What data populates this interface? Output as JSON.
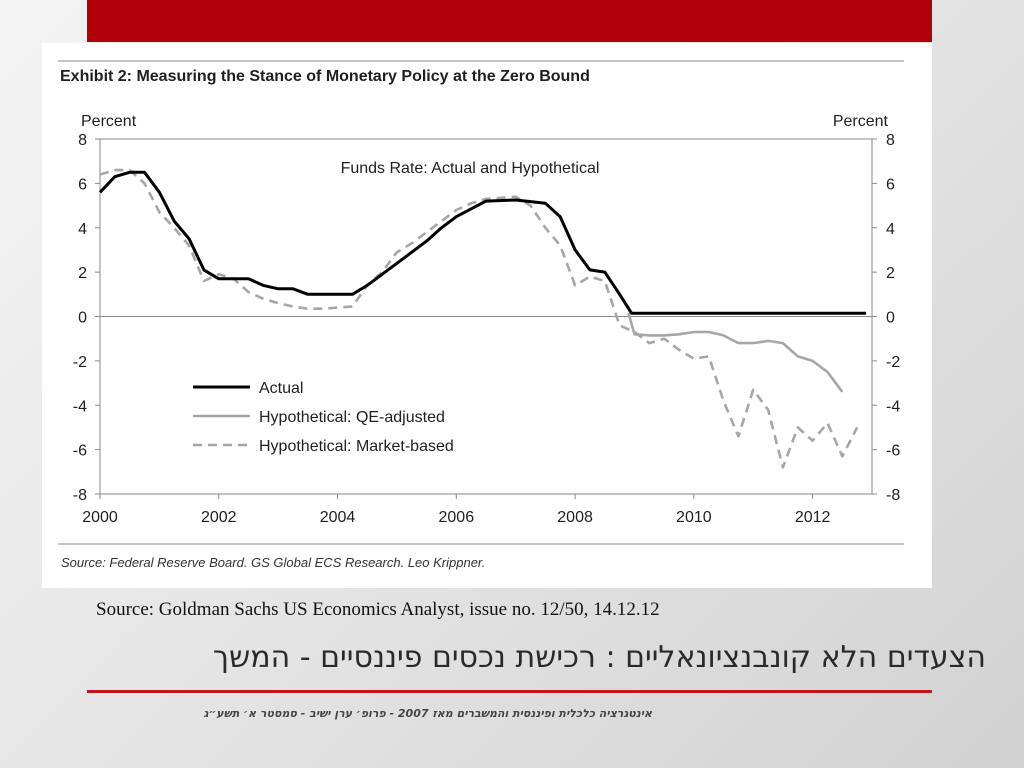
{
  "slide": {
    "source": "Source: Goldman Sachs US Economics Analyst, issue no. 12/50, 14.12.12",
    "title": "הצעדים הלא קונבנציונאליים : רכישת נכסים פיננסיים - המשך",
    "footer": "אינטגרציה כלכלית ופיננסית והמשברים מאז 2007 - פרופ׳ ערן ישיב - סמסטר א׳ תשע״ג",
    "colors": {
      "top_bar": "#b00009",
      "title_rule": "#c0151c"
    }
  },
  "chart_data": {
    "type": "line",
    "exhibit_title": "Exhibit 2: Measuring the Stance of Monetary Policy at the Zero Bound",
    "title": "Funds Rate: Actual and Hypothetical",
    "ylabel_left": "Percent",
    "ylabel_right": "Percent",
    "source": "Source: Federal Reserve Board. GS Global ECS Research. Leo Krippner.",
    "xlim": [
      2000,
      2013
    ],
    "ylim": [
      -8,
      8
    ],
    "x_ticks": [
      "2000",
      "2002",
      "2004",
      "2006",
      "2008",
      "2010",
      "2012"
    ],
    "y_ticks": [
      "8",
      "6",
      "4",
      "2",
      "0",
      "-2",
      "-4",
      "-6",
      "-8"
    ],
    "legend_position": "bottom-left",
    "series": [
      {
        "name": "Actual",
        "style": "solid",
        "color": "#000000",
        "points": [
          [
            2000.0,
            5.6
          ],
          [
            2000.25,
            6.3
          ],
          [
            2000.5,
            6.5
          ],
          [
            2000.75,
            6.5
          ],
          [
            2001.0,
            5.6
          ],
          [
            2001.25,
            4.3
          ],
          [
            2001.5,
            3.5
          ],
          [
            2001.75,
            2.1
          ],
          [
            2002.0,
            1.7
          ],
          [
            2002.5,
            1.7
          ],
          [
            2002.75,
            1.4
          ],
          [
            2003.0,
            1.25
          ],
          [
            2003.25,
            1.25
          ],
          [
            2003.5,
            1.0
          ],
          [
            2004.0,
            1.0
          ],
          [
            2004.25,
            1.0
          ],
          [
            2004.5,
            1.4
          ],
          [
            2004.75,
            1.9
          ],
          [
            2005.0,
            2.4
          ],
          [
            2005.5,
            3.4
          ],
          [
            2005.75,
            4.0
          ],
          [
            2006.0,
            4.5
          ],
          [
            2006.5,
            5.2
          ],
          [
            2007.0,
            5.25
          ],
          [
            2007.5,
            5.1
          ],
          [
            2007.75,
            4.5
          ],
          [
            2008.0,
            3.0
          ],
          [
            2008.25,
            2.1
          ],
          [
            2008.5,
            2.0
          ],
          [
            2008.75,
            1.0
          ],
          [
            2008.95,
            0.15
          ],
          [
            2012.9,
            0.15
          ]
        ]
      },
      {
        "name": "Hypothetical: QE-adjusted",
        "style": "solid",
        "color": "#a6a6a6",
        "points": [
          [
            2008.9,
            0.15
          ],
          [
            2009.0,
            -0.8
          ],
          [
            2009.25,
            -0.85
          ],
          [
            2009.5,
            -0.85
          ],
          [
            2009.75,
            -0.8
          ],
          [
            2010.0,
            -0.7
          ],
          [
            2010.25,
            -0.7
          ],
          [
            2010.5,
            -0.85
          ],
          [
            2010.75,
            -1.2
          ],
          [
            2011.0,
            -1.2
          ],
          [
            2011.25,
            -1.1
          ],
          [
            2011.5,
            -1.2
          ],
          [
            2011.75,
            -1.8
          ],
          [
            2012.0,
            -2.0
          ],
          [
            2012.25,
            -2.5
          ],
          [
            2012.5,
            -3.4
          ]
        ]
      },
      {
        "name": "Hypothetical: Market-based",
        "style": "dashed",
        "color": "#a6a6a6",
        "points": [
          [
            2000.0,
            6.4
          ],
          [
            2000.25,
            6.6
          ],
          [
            2000.5,
            6.6
          ],
          [
            2000.75,
            6.0
          ],
          [
            2001.0,
            4.7
          ],
          [
            2001.25,
            4.0
          ],
          [
            2001.5,
            3.2
          ],
          [
            2001.75,
            1.6
          ],
          [
            2002.0,
            1.9
          ],
          [
            2002.25,
            1.7
          ],
          [
            2002.5,
            1.1
          ],
          [
            2002.75,
            0.8
          ],
          [
            2003.0,
            0.6
          ],
          [
            2003.25,
            0.45
          ],
          [
            2003.5,
            0.35
          ],
          [
            2003.75,
            0.35
          ],
          [
            2004.0,
            0.4
          ],
          [
            2004.25,
            0.45
          ],
          [
            2004.5,
            1.4
          ],
          [
            2004.75,
            2.0
          ],
          [
            2005.0,
            2.9
          ],
          [
            2005.25,
            3.3
          ],
          [
            2005.5,
            3.8
          ],
          [
            2005.75,
            4.3
          ],
          [
            2006.0,
            4.8
          ],
          [
            2006.25,
            5.1
          ],
          [
            2006.5,
            5.3
          ],
          [
            2007.0,
            5.4
          ],
          [
            2007.25,
            5.0
          ],
          [
            2007.5,
            4.0
          ],
          [
            2007.75,
            3.2
          ],
          [
            2008.0,
            1.4
          ],
          [
            2008.25,
            1.8
          ],
          [
            2008.5,
            1.6
          ],
          [
            2008.75,
            -0.4
          ],
          [
            2009.0,
            -0.7
          ],
          [
            2009.25,
            -1.2
          ],
          [
            2009.5,
            -1.0
          ],
          [
            2009.75,
            -1.5
          ],
          [
            2010.0,
            -1.9
          ],
          [
            2010.25,
            -1.8
          ],
          [
            2010.5,
            -3.8
          ],
          [
            2010.75,
            -5.4
          ],
          [
            2011.0,
            -3.3
          ],
          [
            2011.25,
            -4.2
          ],
          [
            2011.5,
            -6.8
          ],
          [
            2011.75,
            -5.0
          ],
          [
            2012.0,
            -5.6
          ],
          [
            2012.25,
            -4.8
          ],
          [
            2012.5,
            -6.3
          ],
          [
            2012.75,
            -5.0
          ]
        ]
      }
    ]
  }
}
